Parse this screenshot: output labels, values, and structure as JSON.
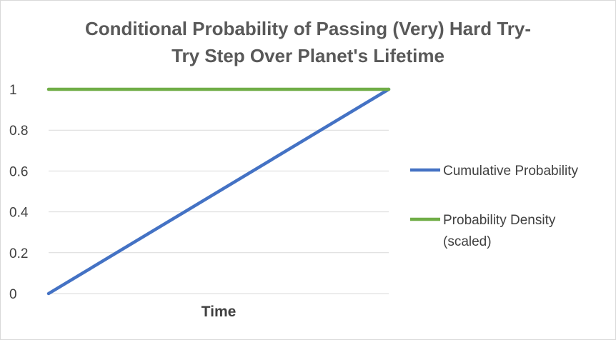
{
  "chart_data": {
    "type": "line",
    "title_lines": [
      "Conditional Probability of Passing (Very) Hard Try-",
      "Try Step Over Planet's Lifetime"
    ],
    "xlabel": "Time",
    "ylabel": "",
    "ylim": [
      0,
      1
    ],
    "yticks": [
      "0",
      "0.2",
      "0.4",
      "0.6",
      "0.8",
      "1"
    ],
    "grid": true,
    "legend_position": "right",
    "x": [
      0,
      1
    ],
    "series": [
      {
        "name": "Cumulative Probability",
        "values": [
          0,
          1
        ],
        "color": "#4472c4"
      },
      {
        "name": "Probability Density (scaled)",
        "name_lines": [
          "Probability Density",
          "(scaled)"
        ],
        "values": [
          1,
          1
        ],
        "color": "#70ad47"
      }
    ]
  }
}
